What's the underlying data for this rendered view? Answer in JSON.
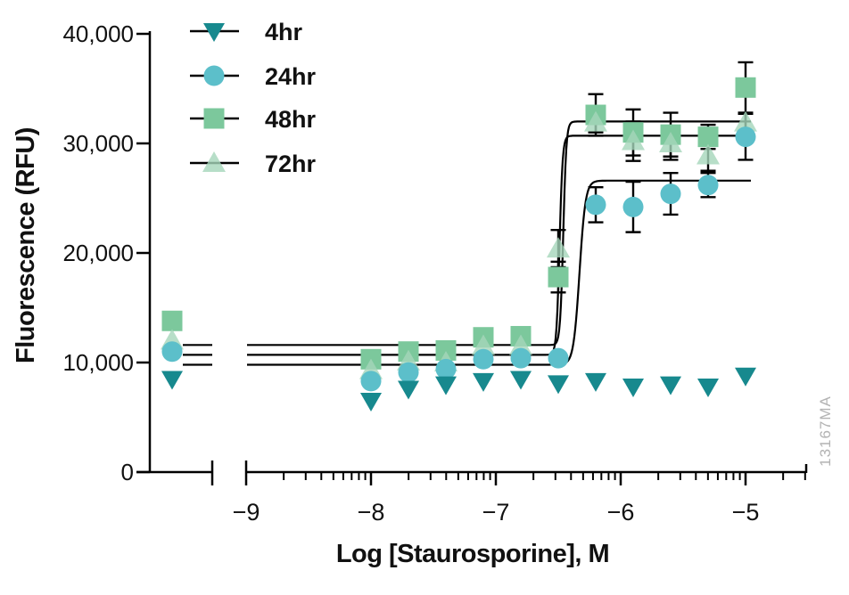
{
  "watermark": "13167MA",
  "colors": {
    "axis": "#000000",
    "text": "#111111",
    "watermark": "#b3b3b3"
  },
  "chart_data": {
    "type": "scatter",
    "title": "",
    "xlabel": "Log [Staurosporine], M",
    "ylabel": "Fluorescence (RFU)",
    "x_axis_break": true,
    "grid": false,
    "legend_position": "top-left-inside",
    "xlim_log": [
      -9,
      -5
    ],
    "ylim": [
      0,
      40000
    ],
    "x_ticks": [
      -9,
      -8,
      -7,
      -6,
      -5
    ],
    "x_tick_labels": [
      "−9",
      "−8",
      "−7",
      "−6",
      "−5"
    ],
    "y_ticks": [
      0,
      10000,
      20000,
      30000,
      40000
    ],
    "y_tick_labels": [
      "0",
      "10,000",
      "20,000",
      "30,000",
      "40,000"
    ],
    "log_x": [
      -8.0,
      -7.7,
      -7.4,
      -7.1,
      -6.8,
      -6.5,
      -6.2,
      -5.9,
      -5.6,
      -5.3,
      -5.0
    ],
    "series": [
      {
        "name": "4hr",
        "marker": "triangle-down",
        "color": "#17898e",
        "opacity": 1,
        "control": 8500,
        "values": [
          6500,
          7600,
          8000,
          8300,
          8500,
          8100,
          8300,
          7800,
          8000,
          7800,
          8800
        ],
        "errors": [
          0,
          0,
          0,
          0,
          0,
          0,
          0,
          0,
          0,
          0,
          0
        ],
        "fit": null
      },
      {
        "name": "24hr",
        "marker": "circle",
        "color": "#5cbfca",
        "opacity": 1,
        "control": 11000,
        "values": [
          8300,
          9100,
          9400,
          10300,
          10400,
          10400,
          24400,
          24200,
          25400,
          26200,
          30600
        ],
        "errors": [
          0,
          0,
          0,
          0,
          0,
          0,
          1600,
          2300,
          1900,
          1100,
          2100
        ],
        "fit": {
          "base": 9800,
          "plateau": 26600,
          "logec50": -6.33,
          "hill": 18
        }
      },
      {
        "name": "48hr",
        "marker": "square",
        "color": "#7cc89c",
        "opacity": 1,
        "control": 13800,
        "values": [
          10300,
          11000,
          11100,
          12300,
          12400,
          17800,
          32600,
          31000,
          30800,
          30600,
          35100
        ],
        "errors": [
          0,
          0,
          0,
          0,
          0,
          1400,
          1900,
          2100,
          2000,
          1100,
          2300
        ],
        "fit": {
          "base": 11600,
          "plateau": 32000,
          "logec50": -6.46,
          "hill": 35
        }
      },
      {
        "name": "72hr",
        "marker": "triangle-up",
        "color": "#a5d6ba",
        "opacity": 0.8,
        "control": 12000,
        "values": [
          9300,
          10100,
          10000,
          11500,
          11500,
          20400,
          31900,
          30200,
          30000,
          28900,
          31900
        ],
        "errors": [
          0,
          0,
          0,
          0,
          0,
          1700,
          900,
          1800,
          1500,
          1400,
          900
        ],
        "fit": {
          "base": 10700,
          "plateau": 30700,
          "logec50": -6.49,
          "hill": 35
        }
      }
    ]
  }
}
